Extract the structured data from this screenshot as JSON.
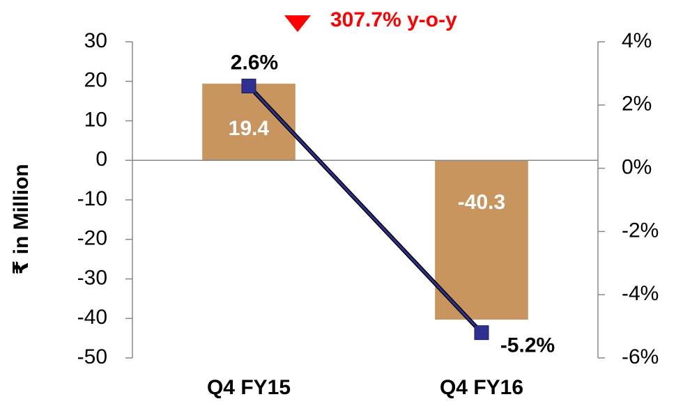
{
  "chart_data": {
    "type": "bar",
    "annotation": "307.7% y-o-y",
    "y_axis_label": "₹ in Million",
    "categories": [
      "Q4 FY15",
      "Q4 FY16"
    ],
    "values": [
      19.4,
      -40.3
    ],
    "color": "#c8955f",
    "ylim": [
      -50,
      30
    ],
    "yticks": [
      -50,
      -40,
      -30,
      -20,
      -10,
      0,
      10,
      20,
      30
    ],
    "y2lim": [
      -6,
      4
    ],
    "y2ticks": [
      {
        "value": -6,
        "label": "-6%"
      },
      {
        "value": -4,
        "label": "-4%"
      },
      {
        "value": -2,
        "label": "-2%"
      },
      {
        "value": 0,
        "label": "0%"
      },
      {
        "value": 2,
        "label": "2%"
      },
      {
        "value": 4,
        "label": "4%"
      }
    ],
    "series": [
      {
        "type": "line",
        "axis": "y2",
        "color": "#2e3192",
        "values": [
          2.6,
          -5.2
        ],
        "value_labels": [
          "2.6%",
          "-5.2%"
        ]
      }
    ]
  }
}
